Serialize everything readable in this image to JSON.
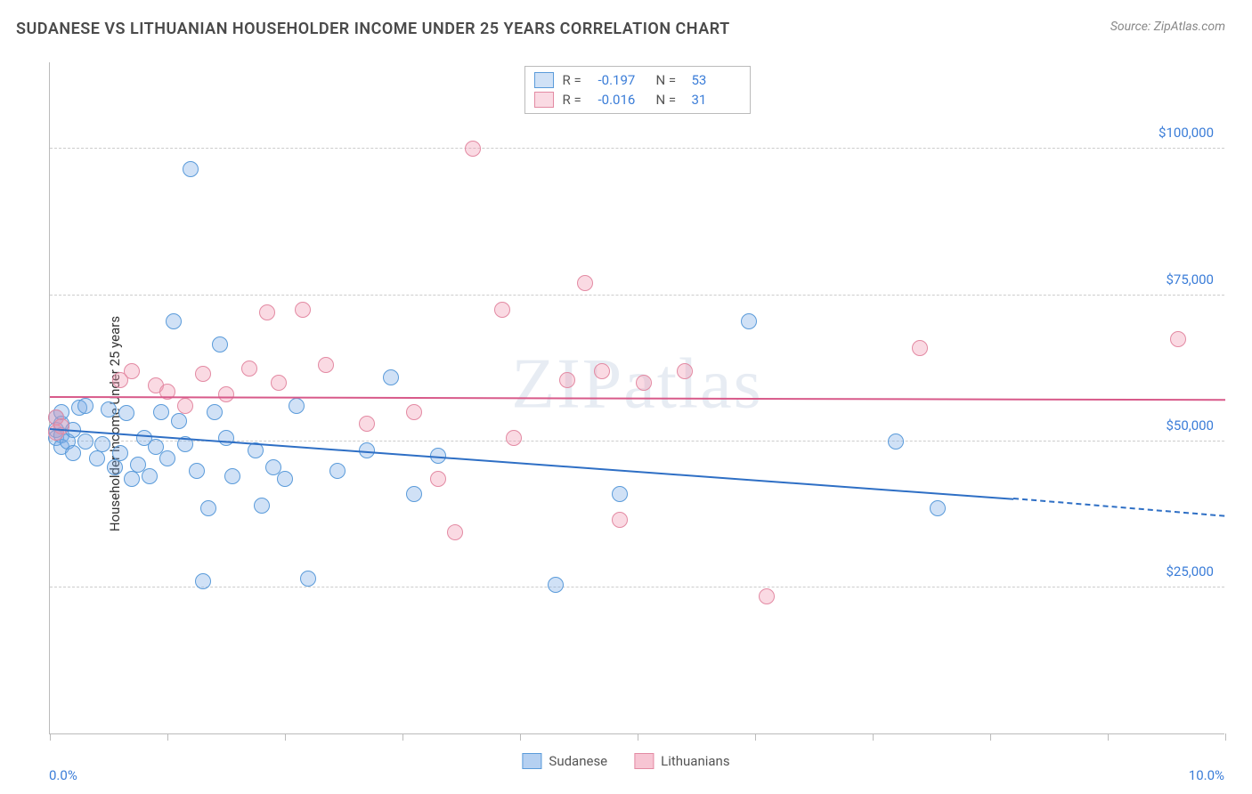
{
  "title": "SUDANESE VS LITHUANIAN HOUSEHOLDER INCOME UNDER 25 YEARS CORRELATION CHART",
  "source_label": "Source: ZipAtlas.com",
  "watermark_text": "ZIPatlas",
  "chart": {
    "type": "scatter",
    "ylabel": "Householder Income Under 25 years",
    "xlim": [
      0,
      10
    ],
    "ylim": [
      0,
      115000
    ],
    "xtick_positions": [
      0,
      1,
      2,
      3,
      4,
      5,
      6,
      7,
      8,
      9,
      10
    ],
    "xtick_labels_shown": {
      "min": "0.0%",
      "max": "10.0%"
    },
    "yticks": [
      {
        "v": 25000,
        "label": "$25,000"
      },
      {
        "v": 50000,
        "label": "$50,000"
      },
      {
        "v": 75000,
        "label": "$75,000"
      },
      {
        "v": 100000,
        "label": "$100,000"
      }
    ],
    "background_color": "#ffffff",
    "grid_color": "#cccccc",
    "axis_color": "#bbbbbb",
    "label_color": "#3b7dd8",
    "marker_radius": 9,
    "marker_stroke_width": 1.5,
    "series": [
      {
        "name": "Sudanese",
        "fill": "rgba(120,170,230,0.35)",
        "stroke": "#5a9bda",
        "r": -0.197,
        "n": 53,
        "trend": {
          "x1": 0,
          "y1": 52000,
          "x2": 8.2,
          "y2": 40000,
          "dash_x2": 10.0,
          "dash_y2": 37000,
          "color": "#2e6fc5"
        },
        "points": [
          [
            0.05,
            52000
          ],
          [
            0.05,
            50500
          ],
          [
            0.05,
            54000
          ],
          [
            0.1,
            51000
          ],
          [
            0.1,
            49000
          ],
          [
            0.1,
            53000
          ],
          [
            0.1,
            55000
          ],
          [
            0.15,
            50000
          ],
          [
            0.2,
            48000
          ],
          [
            0.2,
            52000
          ],
          [
            0.25,
            55800
          ],
          [
            0.3,
            50000
          ],
          [
            0.3,
            56000
          ],
          [
            0.4,
            47000
          ],
          [
            0.45,
            49500
          ],
          [
            0.5,
            55500
          ],
          [
            0.55,
            45500
          ],
          [
            0.6,
            48000
          ],
          [
            0.65,
            54800
          ],
          [
            0.7,
            43500
          ],
          [
            0.75,
            46000
          ],
          [
            0.8,
            50500
          ],
          [
            0.85,
            44000
          ],
          [
            0.9,
            49000
          ],
          [
            0.95,
            55000
          ],
          [
            1.0,
            47000
          ],
          [
            1.05,
            70500
          ],
          [
            1.1,
            53500
          ],
          [
            1.15,
            49500
          ],
          [
            1.2,
            96500
          ],
          [
            1.25,
            45000
          ],
          [
            1.3,
            26000
          ],
          [
            1.35,
            38500
          ],
          [
            1.4,
            55000
          ],
          [
            1.45,
            66500
          ],
          [
            1.5,
            50500
          ],
          [
            1.55,
            44000
          ],
          [
            1.75,
            48500
          ],
          [
            1.8,
            39000
          ],
          [
            1.9,
            45500
          ],
          [
            2.0,
            43500
          ],
          [
            2.1,
            56000
          ],
          [
            2.2,
            26500
          ],
          [
            2.45,
            45000
          ],
          [
            2.7,
            48500
          ],
          [
            2.9,
            61000
          ],
          [
            3.1,
            41000
          ],
          [
            3.3,
            47500
          ],
          [
            4.3,
            25500
          ],
          [
            4.85,
            41000
          ],
          [
            5.95,
            70500
          ],
          [
            7.2,
            50000
          ],
          [
            7.55,
            38500
          ]
        ]
      },
      {
        "name": "Lithuanians",
        "fill": "rgba(240,150,175,0.35)",
        "stroke": "#e38aa3",
        "r": -0.016,
        "n": 31,
        "trend": {
          "x1": 0,
          "y1": 57500,
          "x2": 10.0,
          "y2": 57000,
          "color": "#d85a8a"
        },
        "points": [
          [
            0.05,
            54000
          ],
          [
            0.05,
            51500
          ],
          [
            0.1,
            52500
          ],
          [
            0.6,
            60500
          ],
          [
            0.7,
            62000
          ],
          [
            0.9,
            59500
          ],
          [
            1.0,
            58500
          ],
          [
            1.15,
            56000
          ],
          [
            1.3,
            61500
          ],
          [
            1.5,
            58000
          ],
          [
            1.7,
            62500
          ],
          [
            1.85,
            72000
          ],
          [
            1.95,
            60000
          ],
          [
            2.15,
            72500
          ],
          [
            2.35,
            63000
          ],
          [
            2.7,
            53000
          ],
          [
            3.1,
            55000
          ],
          [
            3.3,
            43500
          ],
          [
            3.45,
            34500
          ],
          [
            3.6,
            100000
          ],
          [
            3.85,
            72500
          ],
          [
            3.95,
            50500
          ],
          [
            4.4,
            60500
          ],
          [
            4.55,
            77000
          ],
          [
            4.7,
            62000
          ],
          [
            4.85,
            36500
          ],
          [
            5.05,
            60000
          ],
          [
            5.4,
            62000
          ],
          [
            6.1,
            23500
          ],
          [
            7.4,
            66000
          ],
          [
            9.6,
            67500
          ]
        ]
      }
    ],
    "bottom_legend": [
      {
        "label": "Sudanese",
        "fill": "rgba(120,170,230,0.55)",
        "stroke": "#5a9bda"
      },
      {
        "label": "Lithuanians",
        "fill": "rgba(240,150,175,0.55)",
        "stroke": "#e38aa3"
      }
    ]
  }
}
